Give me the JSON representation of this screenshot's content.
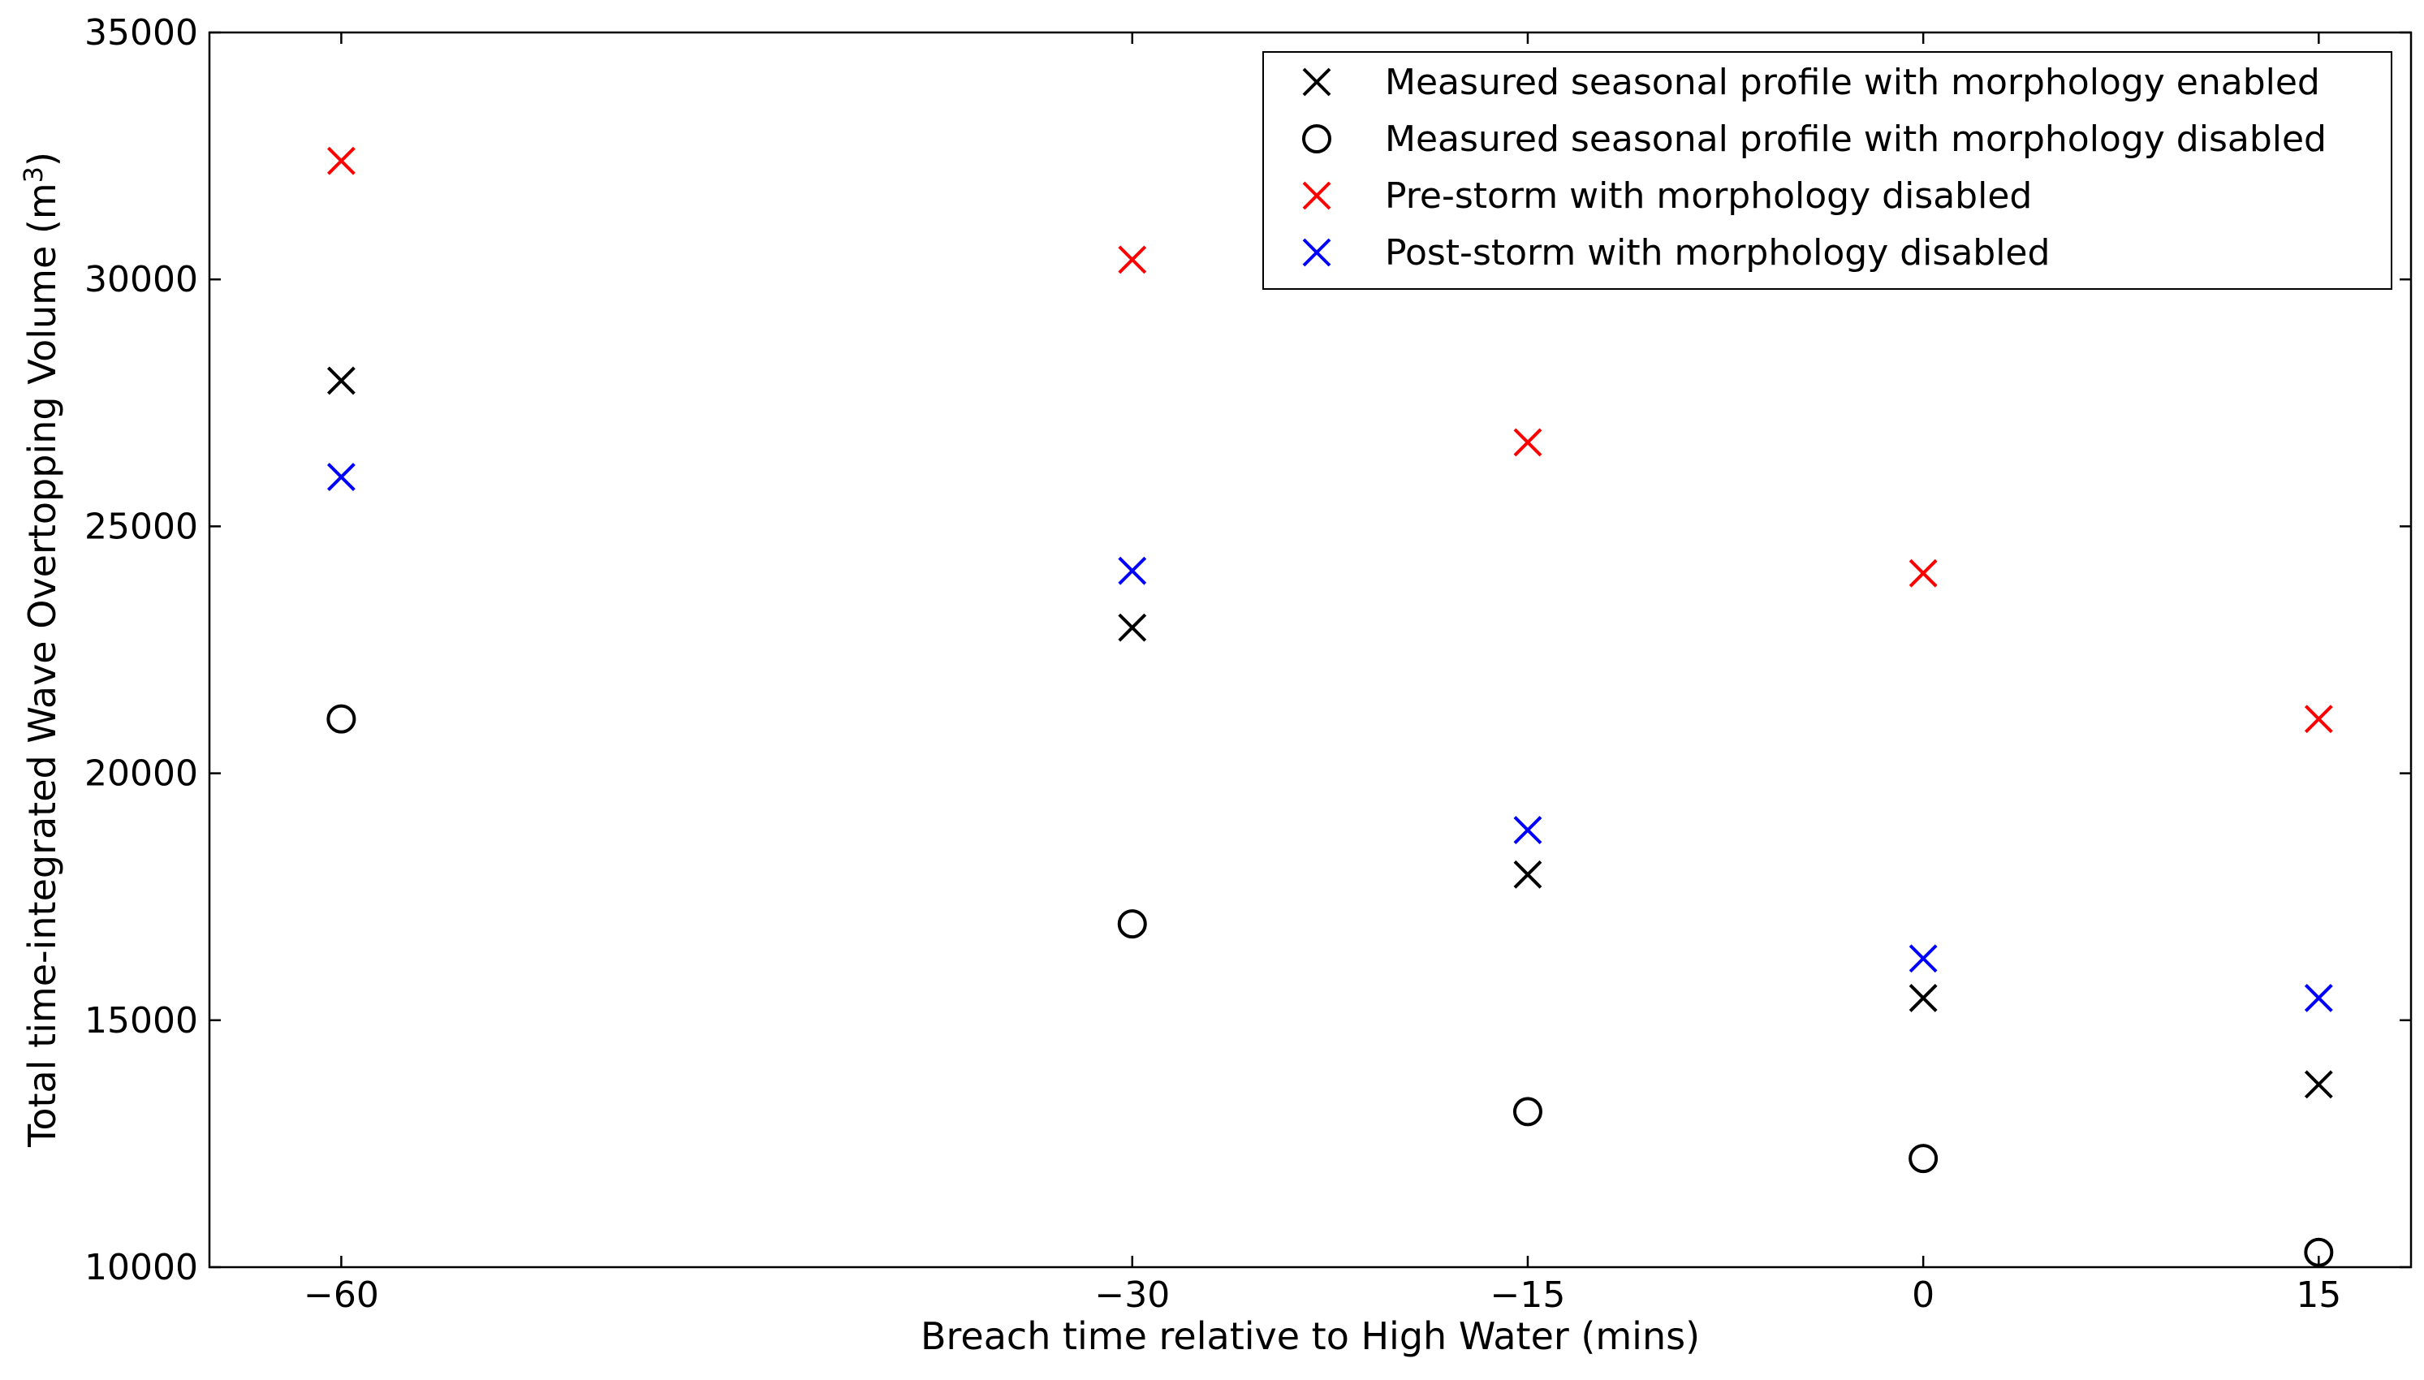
{
  "chart_data": {
    "type": "scatter",
    "title": "",
    "xlabel": "Breach time relative to High Water (mins)",
    "ylabel_main": "Total time-integrated Wave Overtopping Volume (m",
    "ylabel_sup": "3",
    "ylabel_close": ")",
    "xlim": [
      -65,
      18.5
    ],
    "ylim": [
      10000,
      35000
    ],
    "xticks": [
      -60,
      -30,
      -15,
      0,
      15
    ],
    "xtick_labels": [
      "−60",
      "−30",
      "−15",
      "0",
      "15"
    ],
    "yticks": [
      10000,
      15000,
      20000,
      25000,
      30000,
      35000
    ],
    "ytick_labels": [
      "10000",
      "15000",
      "20000",
      "25000",
      "30000",
      "35000"
    ],
    "grid": false,
    "legend_position": "top-right",
    "series": [
      {
        "name": "Measured seasonal profile with morphology enabled",
        "marker": "x",
        "color": "#000000",
        "x": [
          -60,
          -30,
          -15,
          0,
          15
        ],
        "y": [
          27950,
          22950,
          17950,
          15450,
          13700
        ]
      },
      {
        "name": "Measured seasonal profile with morphology disabled",
        "marker": "o",
        "color": "#000000",
        "x": [
          -60,
          -30,
          -15,
          0,
          15
        ],
        "y": [
          21100,
          16950,
          13150,
          12200,
          10300
        ]
      },
      {
        "name": "Pre-storm with morphology disabled",
        "marker": "x",
        "color": "#ff0000",
        "x": [
          -60,
          -30,
          -15,
          0,
          15
        ],
        "y": [
          32400,
          30400,
          26700,
          24050,
          21100
        ]
      },
      {
        "name": "Post-storm with morphology disabled",
        "marker": "x",
        "color": "#0000ff",
        "x": [
          -60,
          -30,
          -15,
          0,
          15
        ],
        "y": [
          26000,
          24100,
          18850,
          16250,
          15450
        ]
      }
    ]
  }
}
